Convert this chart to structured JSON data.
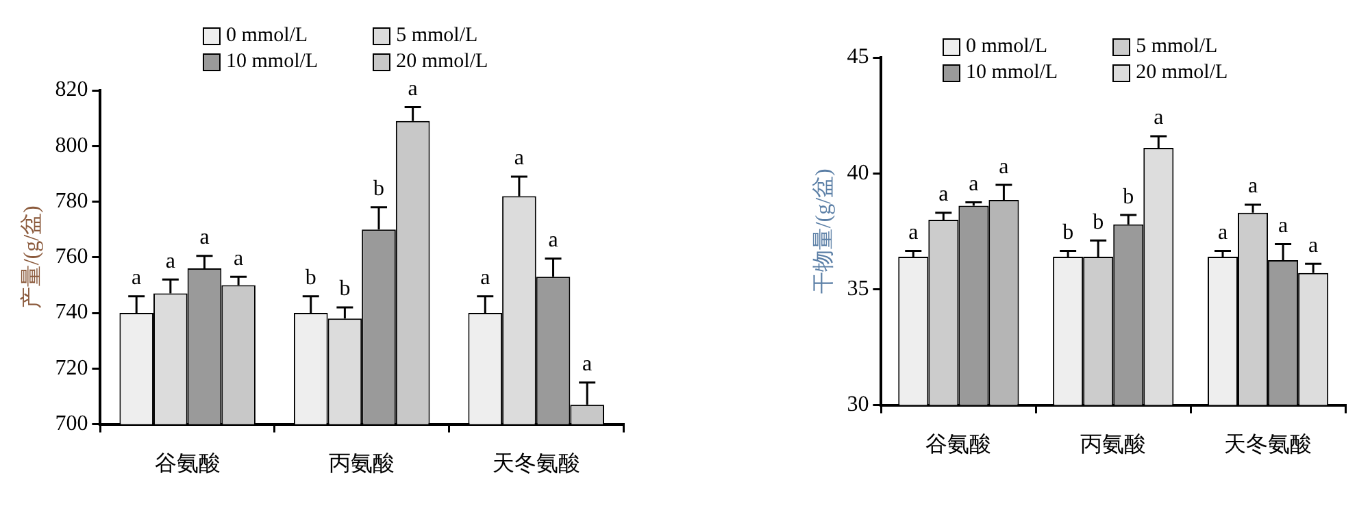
{
  "chart_data": [
    {
      "type": "bar",
      "ylabel": "产量/(g/盆)",
      "categories": [
        "谷氨酸",
        "丙氨酸",
        "天冬氨酸"
      ],
      "ylim": [
        700,
        820
      ],
      "yticks": [
        700,
        720,
        740,
        760,
        780,
        800,
        820
      ],
      "grid": false,
      "legend": "top",
      "series": [
        {
          "name": "0 mmol/L",
          "color": "#eeeeee",
          "values": [
            740,
            740,
            740
          ],
          "errors": [
            6,
            6,
            6
          ],
          "value_labels": [
            "a",
            "b",
            "a"
          ]
        },
        {
          "name": "5 mmol/L",
          "color": "#dcdcdc",
          "values": [
            747,
            738,
            782
          ],
          "errors": [
            5,
            4,
            7
          ],
          "value_labels": [
            "a",
            "b",
            "a"
          ]
        },
        {
          "name": "10 mmol/L",
          "color": "#9a9a9a",
          "values": [
            756,
            770,
            753
          ],
          "errors": [
            4.5,
            8,
            6.5
          ],
          "value_labels": [
            "a",
            "b",
            "a"
          ]
        },
        {
          "name": "20 mmol/L",
          "color": "#c8c8c8",
          "values": [
            750,
            809,
            707
          ],
          "errors": [
            3,
            5,
            8
          ],
          "value_labels": [
            "a",
            "a",
            "a"
          ]
        }
      ]
    },
    {
      "type": "bar",
      "ylabel": "干物量/(g/盆)",
      "categories": [
        "谷氨酸",
        "丙氨酸",
        "天冬氨酸"
      ],
      "ylim": [
        30,
        45
      ],
      "yticks": [
        30,
        35,
        40,
        45
      ],
      "grid": false,
      "legend": "top",
      "series": [
        {
          "name": "0 mmol/L",
          "color": "#eeeeee",
          "values": [
            36.4,
            36.4,
            36.4
          ],
          "errors": [
            0.25,
            0.25,
            0.25
          ],
          "value_labels": [
            "a",
            "b",
            "a"
          ]
        },
        {
          "name": "5 mmol/L",
          "color": "#cccccc",
          "values": [
            38.0,
            36.4,
            38.3
          ],
          "errors": [
            0.3,
            0.7,
            0.35
          ],
          "value_labels": [
            "a",
            "b",
            "a"
          ]
        },
        {
          "name": "10 mmol/L",
          "color": "#9a9a9a",
          "values": [
            38.6,
            37.8,
            36.25
          ],
          "errors": [
            0.15,
            0.4,
            0.7
          ],
          "value_labels": [
            "a",
            "b",
            "a"
          ]
        },
        {
          "name": "20 mmol/L",
          "color": "#dddddd",
          "colors": [
            "#b5b5b5",
            "#dddddd",
            "#dddddd"
          ],
          "values": [
            38.85,
            41.1,
            35.7
          ],
          "errors": [
            0.65,
            0.5,
            0.4
          ],
          "value_labels": [
            "a",
            "a",
            "a"
          ]
        }
      ]
    }
  ]
}
